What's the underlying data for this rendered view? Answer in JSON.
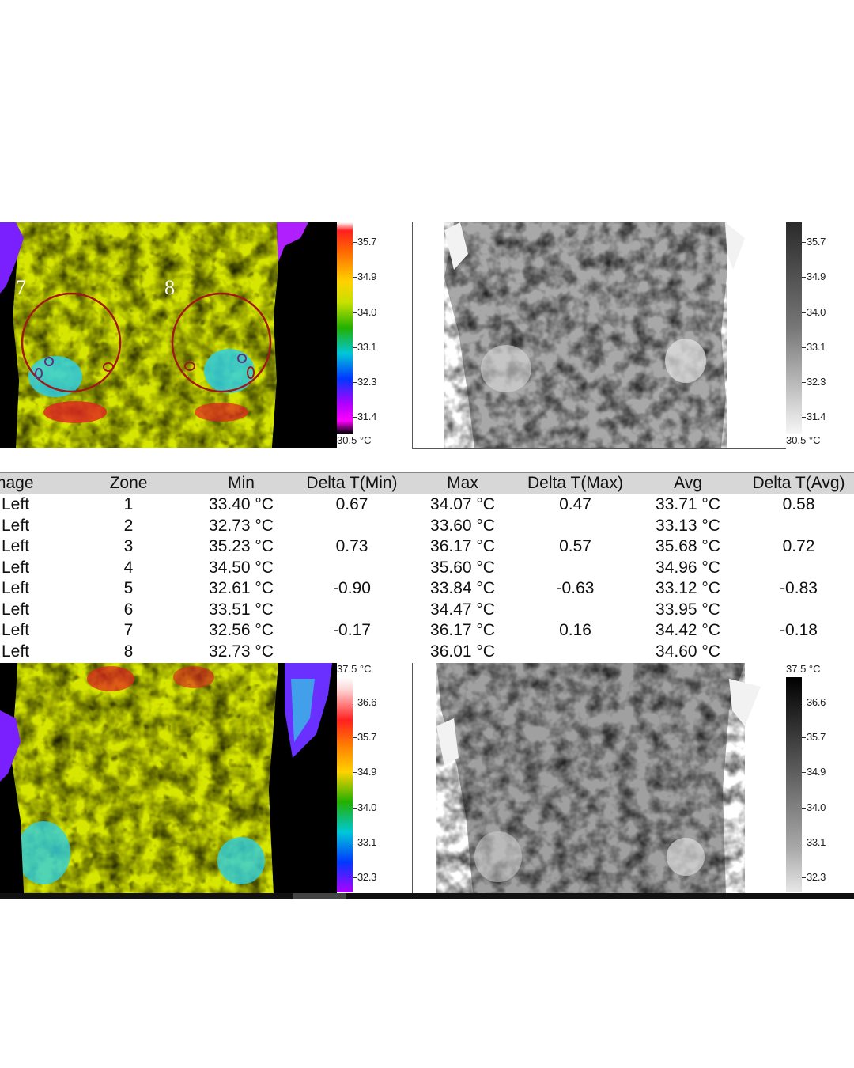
{
  "top_color_scale": {
    "ticks": [
      "35.7",
      "34.9",
      "34.0",
      "33.1",
      "32.3",
      "31.4"
    ],
    "min_label": "30.5 °C"
  },
  "top_gray_scale": {
    "ticks": [
      "35.7",
      "34.9",
      "34.0",
      "33.1",
      "32.3",
      "31.4"
    ],
    "min_label": "30.5 °C"
  },
  "bottom_color_scale": {
    "max_label": "37.5 °C",
    "ticks": [
      "36.6",
      "35.7",
      "34.9",
      "34.0",
      "33.1",
      "32.3"
    ]
  },
  "bottom_gray_scale": {
    "max_label": "37.5 °C",
    "ticks": [
      "36.6",
      "35.7",
      "34.9",
      "34.0",
      "33.1",
      "32.3"
    ]
  },
  "zone_labels": {
    "left": "7",
    "right": "8"
  },
  "table": {
    "headers": [
      "mage",
      "Zone",
      "Min",
      "Delta T(Min)",
      "Max",
      "Delta T(Max)",
      "Avg",
      "Delta T(Avg)"
    ],
    "rows": [
      [
        "Left",
        "1",
        "33.40 °C",
        "0.67",
        "34.07 °C",
        "0.47",
        "33.71 °C",
        "0.58"
      ],
      [
        "Left",
        "2",
        "32.73 °C",
        "",
        "33.60 °C",
        "",
        "33.13 °C",
        ""
      ],
      [
        "Left",
        "3",
        "35.23 °C",
        "0.73",
        "36.17 °C",
        "0.57",
        "35.68 °C",
        "0.72"
      ],
      [
        "Left",
        "4",
        "34.50 °C",
        "",
        "35.60 °C",
        "",
        "34.96 °C",
        ""
      ],
      [
        "Left",
        "5",
        "32.61 °C",
        "-0.90",
        "33.84 °C",
        "-0.63",
        "33.12 °C",
        "-0.83"
      ],
      [
        "Left",
        "6",
        "33.51 °C",
        "",
        "34.47 °C",
        "",
        "33.95 °C",
        ""
      ],
      [
        "Left",
        "7",
        "32.56 °C",
        "-0.17",
        "36.17 °C",
        "0.16",
        "34.42 °C",
        "-0.18"
      ],
      [
        "Left",
        "8",
        "32.73 °C",
        "",
        "36.01 °C",
        "",
        "34.60 °C",
        ""
      ]
    ]
  }
}
